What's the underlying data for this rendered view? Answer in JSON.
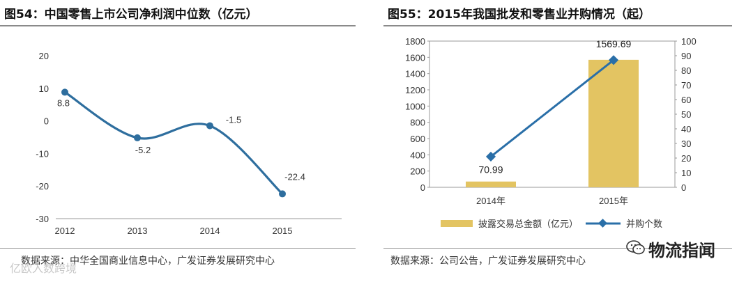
{
  "left_panel": {
    "title": "图54：中国零售上市公司净利润中位数（亿元）",
    "source": "数据来源：中华全国商业信息中心，广发证券发展研究中心"
  },
  "right_panel": {
    "title": "图55：2015年我国批发和零售业并购情况（起）",
    "source": "数据来源：公司公告，广发证券发展研究中心",
    "legend_bar": "披露交易总金额（亿元）",
    "legend_line": "并购个数"
  },
  "watermark": {
    "text": "物流指闻",
    "left_text": "亿欧入数跨境"
  },
  "colors": {
    "line": "#2e6e9e",
    "bar": "#e3c462",
    "line2": "#2a6fa8"
  },
  "chart_data": [
    {
      "type": "line",
      "title": "中国零售上市公司净利润中位数（亿元）",
      "categories": [
        "2012",
        "2013",
        "2014",
        "2015"
      ],
      "values": [
        8.8,
        -5.2,
        -1.5,
        -22.4
      ],
      "labels": [
        "8.8",
        "-5.2",
        "-1.5",
        "-22.4"
      ],
      "ylim": [
        -30,
        20
      ],
      "yticks": [
        "20",
        "10",
        "0",
        "-10",
        "-20",
        "-30"
      ],
      "xlabel": "",
      "ylabel": ""
    },
    {
      "type": "bar",
      "title": "2015年我国批发和零售业并购情况（起）",
      "categories": [
        "2014年",
        "2015年"
      ],
      "series": [
        {
          "name": "披露交易总金额（亿元）",
          "type": "bar",
          "axis": "left",
          "values": [
            70.99,
            1569.69
          ],
          "labels": [
            "70.99",
            "1569.69"
          ]
        },
        {
          "name": "并购个数",
          "type": "line",
          "axis": "right",
          "values": [
            21,
            87
          ]
        }
      ],
      "ylim_left": [
        0,
        1800
      ],
      "yticks_left": [
        "1800",
        "1600",
        "1400",
        "1200",
        "1000",
        "800",
        "600",
        "400",
        "200",
        "0"
      ],
      "ylim_right": [
        0,
        100
      ],
      "yticks_right": [
        "100",
        "90",
        "80",
        "70",
        "60",
        "50",
        "40",
        "30",
        "20",
        "10",
        "0"
      ]
    }
  ]
}
